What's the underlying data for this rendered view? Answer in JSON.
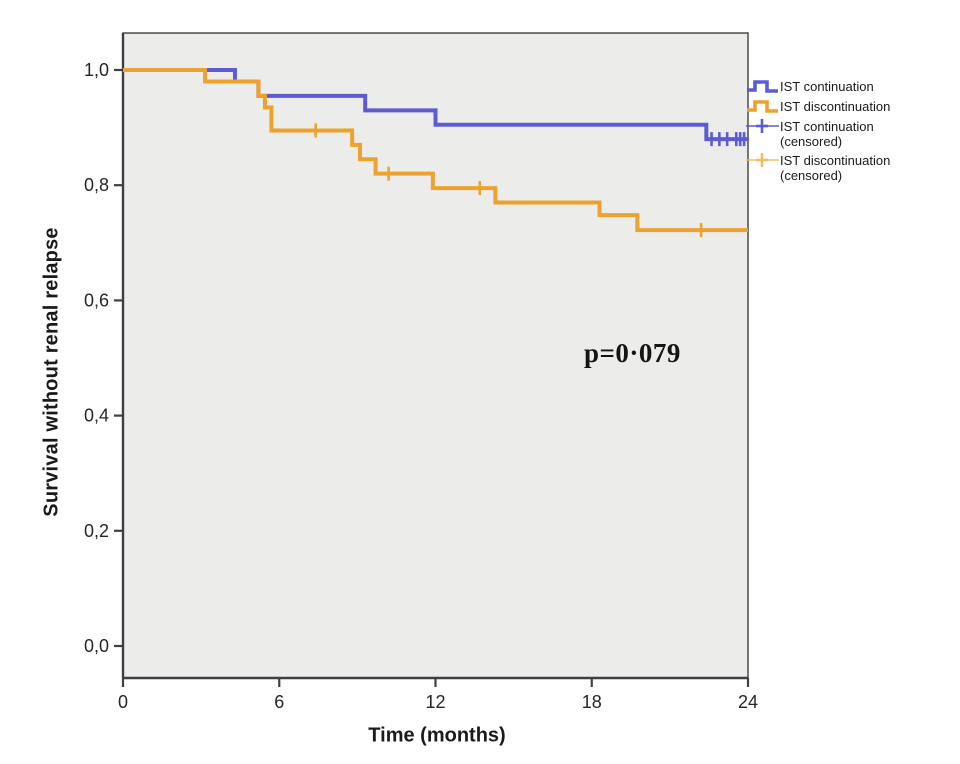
{
  "figure": {
    "background": "#ffffff",
    "plot_background": "#ececea",
    "axis_color": "#3f3f3f",
    "tick_label_color": "#262626"
  },
  "chart_data": {
    "type": "line",
    "subtype": "kaplan-meier-step-survival",
    "title": "",
    "xlabel": "Time (months)",
    "ylabel": "Survival without renal relapse",
    "annotation": "p=0·079",
    "xlim": [
      0,
      24
    ],
    "ylim": [
      0.0,
      1.0
    ],
    "grid": false,
    "legend_position": "right-outside",
    "xticks": [
      {
        "t": 0,
        "label": "0"
      },
      {
        "t": 6,
        "label": "6"
      },
      {
        "t": 12,
        "label": "12"
      },
      {
        "t": 18,
        "label": "18"
      },
      {
        "t": 24,
        "label": "24"
      }
    ],
    "yticks": [
      {
        "v": 0.0,
        "label": "0,0"
      },
      {
        "v": 0.2,
        "label": "0,2"
      },
      {
        "v": 0.4,
        "label": "0,4"
      },
      {
        "v": 0.6,
        "label": "0,6"
      },
      {
        "v": 0.8,
        "label": "0,8"
      },
      {
        "v": 1.0,
        "label": "1,0"
      }
    ],
    "series": [
      {
        "name": "IST continuation",
        "color": "#5b5bd3",
        "end_t": 24,
        "steps": [
          [
            0,
            1.0
          ],
          [
            4.3,
            0.98
          ],
          [
            5.2,
            0.955
          ],
          [
            9.3,
            0.93
          ],
          [
            12.0,
            0.905
          ],
          [
            22.4,
            0.88
          ]
        ],
        "censored": [
          [
            22.6,
            0.88
          ],
          [
            22.9,
            0.88
          ],
          [
            23.2,
            0.88
          ],
          [
            23.55,
            0.88
          ],
          [
            23.7,
            0.88
          ],
          [
            23.85,
            0.88
          ]
        ]
      },
      {
        "name": "IST discontinuation",
        "color": "#eda22f",
        "end_t": 24,
        "steps": [
          [
            0,
            1.0
          ],
          [
            3.15,
            0.98
          ],
          [
            5.2,
            0.955
          ],
          [
            5.45,
            0.935
          ],
          [
            5.7,
            0.895
          ],
          [
            8.8,
            0.87
          ],
          [
            9.1,
            0.845
          ],
          [
            9.7,
            0.82
          ],
          [
            11.9,
            0.795
          ],
          [
            14.3,
            0.77
          ],
          [
            18.3,
            0.748
          ],
          [
            19.75,
            0.722
          ]
        ],
        "censored": [
          [
            7.4,
            0.895
          ],
          [
            10.2,
            0.82
          ],
          [
            13.7,
            0.795
          ],
          [
            22.2,
            0.722
          ]
        ]
      }
    ],
    "legend": [
      {
        "label": "IST continuation",
        "swatch": "step-line",
        "color": "#5b5bd3"
      },
      {
        "label": "IST discontinuation",
        "swatch": "step-line",
        "color": "#eda22f"
      },
      {
        "label": "IST continuation (censored)",
        "swatch": "plus-marker",
        "color": "#5b5bd3"
      },
      {
        "label": "IST discontinuation (censored)",
        "swatch": "plus-marker",
        "color": "#edbd6a"
      }
    ]
  }
}
